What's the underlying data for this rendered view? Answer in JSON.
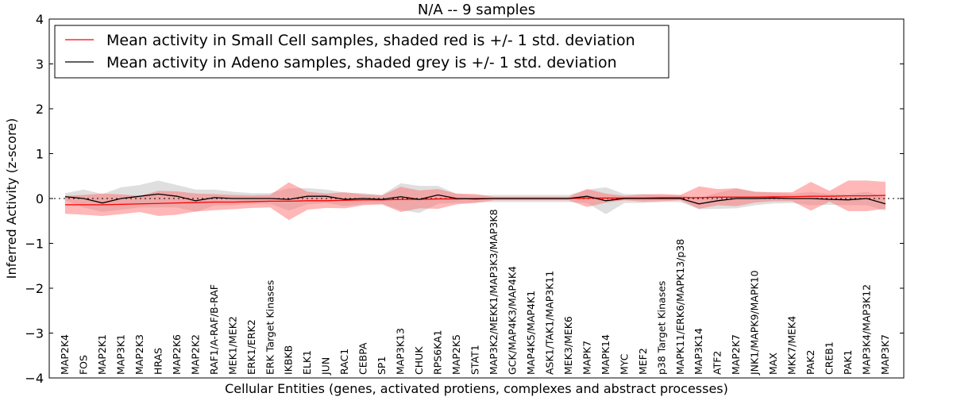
{
  "chart_data": {
    "type": "line",
    "title": "N/A -- 9 samples",
    "xlabel": "Cellular Entities (genes, activated protiens, complexes and abstract processes)",
    "ylabel": "Inferred Activity (z-score)",
    "ylim": [
      -4,
      4
    ],
    "yticks": [
      -4,
      -3,
      -2,
      -1,
      0,
      1,
      2,
      3,
      4
    ],
    "ytick_labels": [
      "−4",
      "−3",
      "−2",
      "−1",
      "0",
      "1",
      "2",
      "3",
      "4"
    ],
    "legend_position": "upper-left",
    "colors": {
      "small_cell": "#ff0000",
      "small_cell_band": "#ff7070",
      "adeno": "#000000",
      "adeno_band": "#b0b0b0"
    },
    "categories": [
      "MAP2K4",
      "FOS",
      "MAP2K1",
      "MAP3K1",
      "MAP2K3",
      "HRAS",
      "MAP2K6",
      "MAP2K2",
      "RAF1/A-RAF/B-RAF",
      "MEK1/MEK2",
      "ERK1/ERK2",
      "ERK Target Kinases",
      "IKBKB",
      "ELK1",
      "JUN",
      "RAC1",
      "CEBPA",
      "SP1",
      "MAP3K13",
      "CHUK",
      "RPS6KA1",
      "MAP2K5",
      "STAT1",
      "MAP3K2/MEKK1/MAP3K3/MAP3K8",
      "GCK/MAP4K3/MAP4K4",
      "MAP4K5/MAP4K1",
      "ASK1/TAK1/MAP3K11",
      "MEK3/MEK6",
      "MAPK7",
      "MAPK14",
      "MYC",
      "MEF2",
      "p38 Target Kinases",
      "MAPK11/ERK6/MAPK13/p38",
      "MAP3K14",
      "ATF2",
      "MAP2K7",
      "JNK1/MAPK9/MAPK10",
      "MAX",
      "MKK7/MEK4",
      "PAK2",
      "CREB1",
      "PAK1",
      "MAP3K4/MAP3K12",
      "MAP3K7"
    ],
    "series": [
      {
        "name": "Mean activity in Small Cell samples, shaded red is +/- 1 std. deviation",
        "mean": [
          -0.14,
          -0.14,
          -0.14,
          -0.13,
          -0.12,
          -0.11,
          -0.1,
          -0.09,
          -0.08,
          -0.08,
          -0.07,
          -0.06,
          -0.06,
          -0.05,
          -0.05,
          -0.04,
          -0.03,
          -0.03,
          -0.02,
          -0.02,
          -0.01,
          -0.01,
          0,
          0,
          0,
          0,
          0,
          0,
          0.01,
          0.01,
          0.01,
          0.01,
          0.02,
          0.02,
          0.02,
          0.03,
          0.03,
          0.03,
          0.04,
          0.04,
          0.05,
          0.05,
          0.06,
          0.06,
          0.07
        ],
        "std": [
          0.2,
          0.22,
          0.25,
          0.22,
          0.18,
          0.28,
          0.26,
          0.2,
          0.18,
          0.16,
          0.14,
          0.14,
          0.42,
          0.2,
          0.16,
          0.18,
          0.12,
          0.1,
          0.28,
          0.2,
          0.22,
          0.12,
          0.1,
          0.04,
          0.04,
          0.04,
          0.04,
          0.04,
          0.2,
          0.1,
          0.05,
          0.08,
          0.08,
          0.06,
          0.25,
          0.18,
          0.2,
          0.12,
          0.1,
          0.1,
          0.32,
          0.12,
          0.34,
          0.34,
          0.3
        ]
      },
      {
        "name": "Mean activity in Adeno samples, shaded grey is +/- 1 std. deviation",
        "mean": [
          0.04,
          0,
          -0.1,
          0,
          0.05,
          0.1,
          0.05,
          -0.05,
          0.02,
          0,
          0,
          0,
          -0.02,
          0.05,
          0.05,
          -0.02,
          0,
          -0.02,
          0.04,
          -0.02,
          0.08,
          0,
          -0.01,
          0,
          0,
          0,
          0,
          0,
          0.05,
          -0.05,
          0,
          0,
          0,
          0,
          -0.12,
          -0.05,
          0,
          0,
          0.01,
          0,
          0,
          -0.02,
          -0.03,
          0,
          -0.12
        ],
        "std": [
          0.08,
          0.2,
          0.2,
          0.25,
          0.25,
          0.3,
          0.25,
          0.25,
          0.18,
          0.15,
          0.12,
          0.12,
          0.25,
          0.18,
          0.15,
          0.15,
          0.12,
          0.1,
          0.3,
          0.3,
          0.2,
          0.1,
          0.08,
          0.08,
          0.08,
          0.08,
          0.08,
          0.08,
          0.15,
          0.3,
          0.1,
          0.1,
          0.08,
          0.08,
          0.12,
          0.18,
          0.22,
          0.15,
          0.12,
          0.1,
          0.15,
          0.12,
          0.12,
          0.15,
          0.15
        ]
      }
    ]
  }
}
